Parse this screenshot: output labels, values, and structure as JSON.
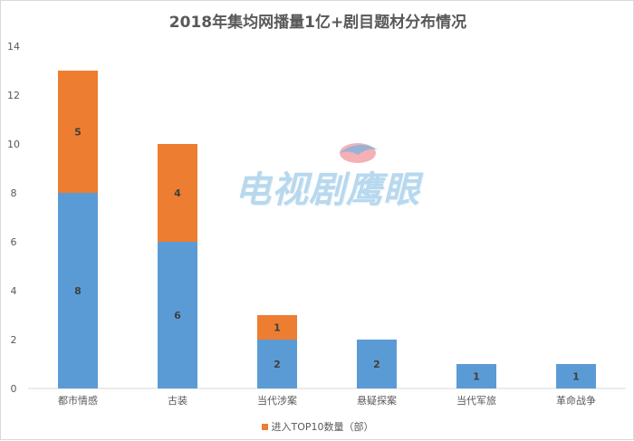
{
  "chart_data": {
    "type": "bar",
    "stacked": true,
    "title": "2018年集均网播量1亿+剧目题材分布情况",
    "categories": [
      "都市情感",
      "古装",
      "当代涉案",
      "悬疑探案",
      "当代军旅",
      "革命战争"
    ],
    "series": [
      {
        "name": "",
        "color": "#5b9bd5",
        "values": [
          8,
          6,
          2,
          2,
          1,
          1
        ]
      },
      {
        "name": "进入TOP10数量（部）",
        "color": "#ed7d31",
        "values": [
          5,
          4,
          1,
          0,
          0,
          0
        ]
      }
    ],
    "ylim": [
      0,
      14
    ],
    "yticks": [
      0,
      2,
      4,
      6,
      8,
      10,
      12,
      14
    ],
    "grid": false,
    "legend_position": "bottom"
  },
  "watermark": {
    "text": "电视剧鹰眼"
  }
}
